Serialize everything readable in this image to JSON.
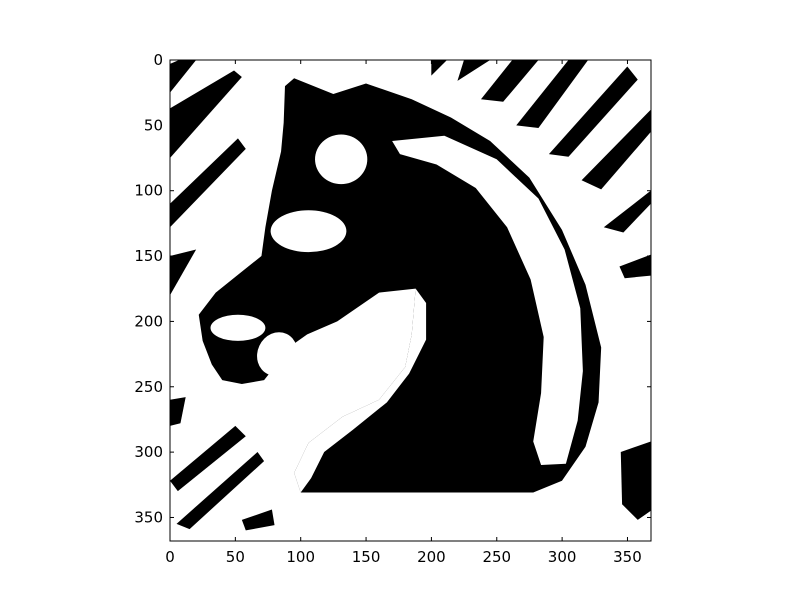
{
  "chart_data": {
    "type": "heatmap",
    "title": "",
    "xlabel": "",
    "ylabel": "",
    "colormap": "binary",
    "image_size": [
      368,
      368
    ],
    "xlim": [
      0,
      368
    ],
    "ylim": [
      368,
      0
    ],
    "x_ticks": [
      0,
      50,
      100,
      150,
      200,
      250,
      300,
      350
    ],
    "y_ticks": [
      0,
      50,
      100,
      150,
      200,
      250,
      300,
      350
    ],
    "x_tick_labels": [
      "0",
      "50",
      "100",
      "150",
      "200",
      "250",
      "300",
      "350"
    ],
    "y_tick_labels": [
      "0",
      "50",
      "100",
      "150",
      "200",
      "250",
      "300",
      "350"
    ],
    "grid": false,
    "colors": {
      "foreground": "#000000",
      "background": "#ffffff"
    },
    "content": "binarized knight chess piece (horse head) with diagonal stripe background"
  }
}
